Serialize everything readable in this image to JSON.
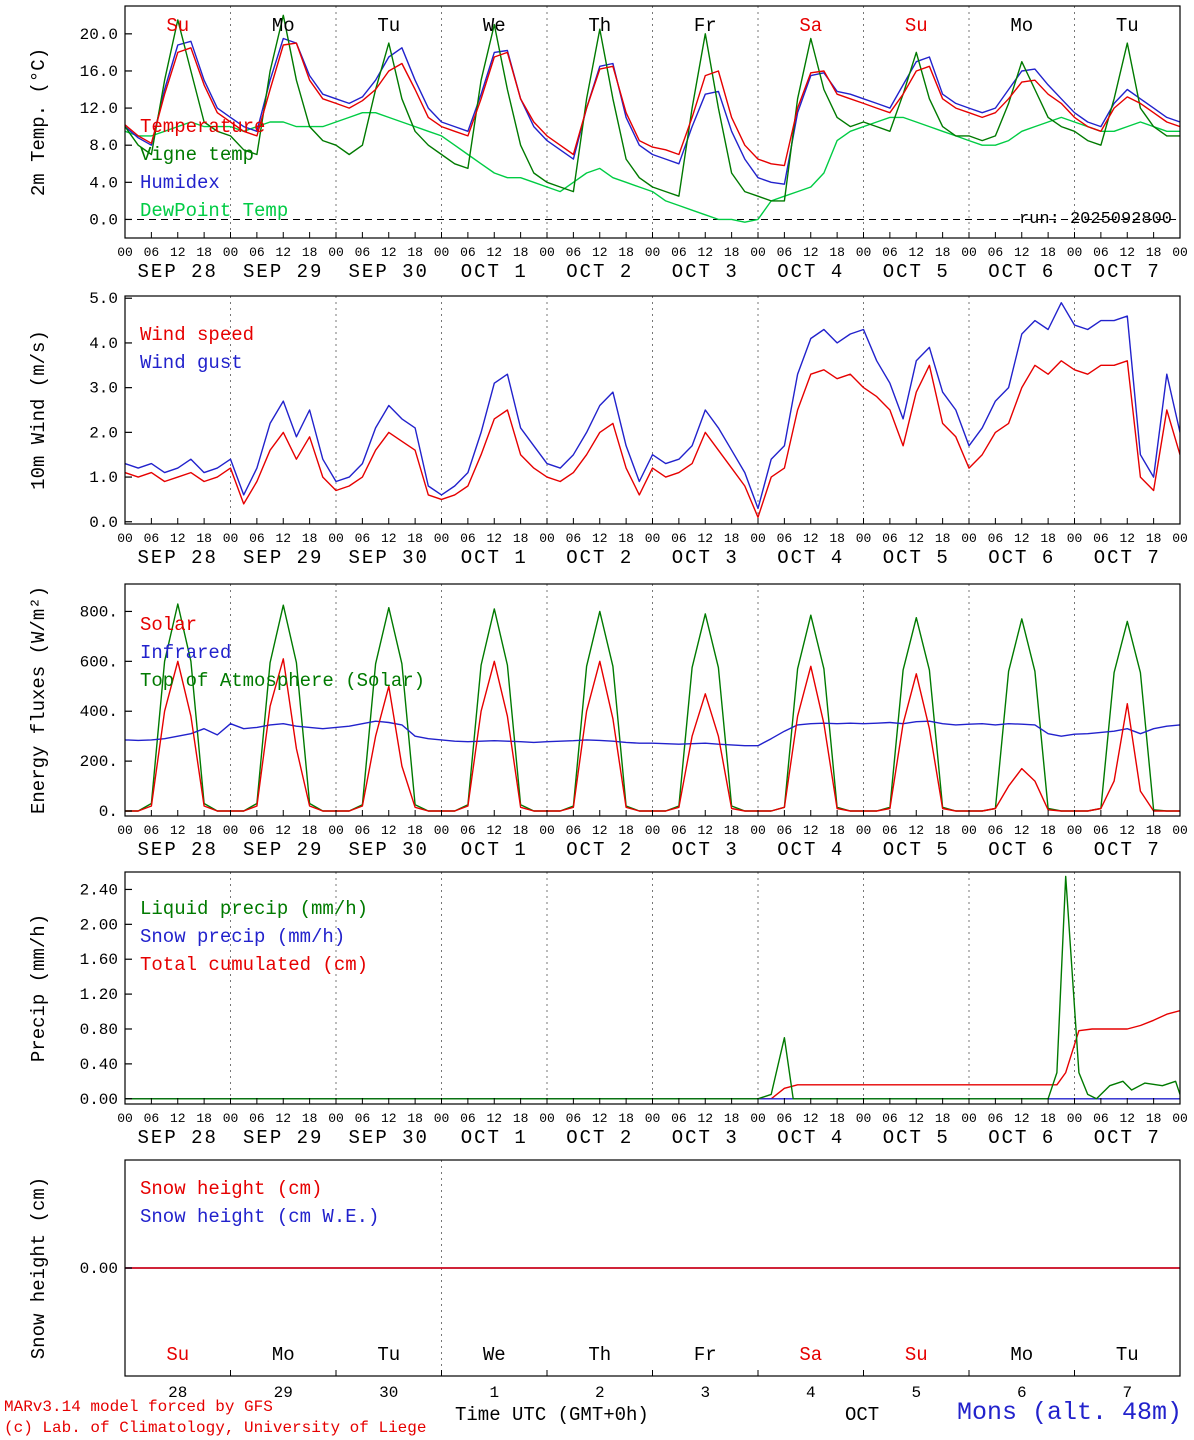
{
  "header": {
    "run_label": "run: 2025092800"
  },
  "footer": {
    "credit1": "MARv3.14 model forced by GFS",
    "credit2": "(c) Lab. of Climatology, University of Liege",
    "xaxis_title": "Time UTC (GMT+0h)",
    "month_label": "OCT",
    "station": "Mons (alt. 48m)"
  },
  "colors": {
    "red": "#e60000",
    "blue": "#2222cc",
    "dark_green": "#007a00",
    "light_green": "#00cc44",
    "grid": "#777777",
    "axis": "#000000"
  },
  "time": {
    "start": 0,
    "end": 240,
    "step": 3,
    "tick_step": 6,
    "tick_cycle": [
      "00",
      "06",
      "12",
      "18"
    ],
    "days": [
      {
        "name": "Su",
        "date": "SEP 28",
        "num": "28",
        "weekend": true
      },
      {
        "name": "Mo",
        "date": "SEP 29",
        "num": "29",
        "weekend": false
      },
      {
        "name": "Tu",
        "date": "SEP 30",
        "num": "30",
        "weekend": false
      },
      {
        "name": "We",
        "date": "OCT 1",
        "num": "1",
        "weekend": false
      },
      {
        "name": "Th",
        "date": "OCT 2",
        "num": "2",
        "weekend": false
      },
      {
        "name": "Fr",
        "date": "OCT 3",
        "num": "3",
        "weekend": false
      },
      {
        "name": "Sa",
        "date": "OCT 4",
        "num": "4",
        "weekend": true
      },
      {
        "name": "Su",
        "date": "OCT 5",
        "num": "5",
        "weekend": true
      },
      {
        "name": "Mo",
        "date": "OCT 6",
        "num": "6",
        "weekend": false
      },
      {
        "name": "Tu",
        "date": "OCT 7",
        "num": "7",
        "weekend": false
      }
    ]
  },
  "chart_data": [
    {
      "type": "line",
      "ylabel": "2m Temp. (°C)",
      "ylim": [
        -2,
        23
      ],
      "yticks": [
        0,
        4,
        8,
        12,
        16,
        20
      ],
      "ytick_labels": [
        "0.0",
        "4.0",
        "8.0",
        "12.0",
        "16.0",
        "20.0"
      ],
      "hline_dashed": 0,
      "series": [
        {
          "name": "Temperature",
          "color": "#e60000",
          "values": [
            10.2,
            9.0,
            8.2,
            13.5,
            18.0,
            18.5,
            14.5,
            11.5,
            10.5,
            9.5,
            9.0,
            14.0,
            18.8,
            19.0,
            15.0,
            13.0,
            12.5,
            12.0,
            12.8,
            14.0,
            16.0,
            16.8,
            14.0,
            11.0,
            10.0,
            9.5,
            9.0,
            13.0,
            17.5,
            18.0,
            13.0,
            10.5,
            9.0,
            8.0,
            7.0,
            12.0,
            16.2,
            16.5,
            11.5,
            8.5,
            7.8,
            7.5,
            7.0,
            11.0,
            15.5,
            16.0,
            11.0,
            8.0,
            6.5,
            6.0,
            5.8,
            12.0,
            15.8,
            16.0,
            13.5,
            13.0,
            12.5,
            12.0,
            11.5,
            13.5,
            16.0,
            16.5,
            13.0,
            12.0,
            11.5,
            11.0,
            11.5,
            13.0,
            14.8,
            15.0,
            13.5,
            12.5,
            11.0,
            10.0,
            9.5,
            12.0,
            13.2,
            12.5,
            11.5,
            10.5,
            10.0
          ]
        },
        {
          "name": "Vigne temp",
          "color": "#007a00",
          "values": [
            10.0,
            8.0,
            7.0,
            15.0,
            21.5,
            16.0,
            10.5,
            9.5,
            9.0,
            7.5,
            7.0,
            16.0,
            22.0,
            15.0,
            10.0,
            8.5,
            8.0,
            7.0,
            8.0,
            14.0,
            19.0,
            13.0,
            9.5,
            8.0,
            7.0,
            6.0,
            5.5,
            15.0,
            21.0,
            14.0,
            8.0,
            5.0,
            4.0,
            3.5,
            3.0,
            13.0,
            20.5,
            13.0,
            6.5,
            4.5,
            3.5,
            3.0,
            2.5,
            12.0,
            20.0,
            12.0,
            5.0,
            3.0,
            2.5,
            2.0,
            2.0,
            13.0,
            19.5,
            14.0,
            11.0,
            10.0,
            10.5,
            10.0,
            9.5,
            13.5,
            18.0,
            13.0,
            10.0,
            9.0,
            9.0,
            8.5,
            9.0,
            12.5,
            17.0,
            14.0,
            11.0,
            10.0,
            9.5,
            8.5,
            8.0,
            13.0,
            19.0,
            12.0,
            10.0,
            9.0,
            9.0
          ]
        },
        {
          "name": "Humidex",
          "color": "#2222cc",
          "values": [
            10.0,
            8.8,
            8.0,
            14.0,
            18.8,
            19.2,
            15.0,
            12.0,
            11.0,
            10.0,
            9.5,
            15.0,
            19.5,
            19.0,
            15.5,
            13.5,
            13.0,
            12.5,
            13.2,
            15.0,
            17.5,
            18.5,
            15.0,
            12.0,
            10.5,
            10.0,
            9.5,
            13.5,
            18.0,
            18.2,
            13.0,
            10.0,
            8.5,
            7.5,
            6.5,
            12.0,
            16.5,
            16.8,
            11.0,
            8.0,
            7.0,
            6.5,
            6.0,
            10.0,
            13.5,
            13.8,
            9.5,
            6.5,
            4.5,
            4.0,
            3.8,
            11.5,
            15.5,
            15.8,
            13.8,
            13.5,
            13.0,
            12.5,
            12.0,
            14.5,
            17.0,
            17.5,
            13.5,
            12.5,
            12.0,
            11.5,
            12.0,
            14.0,
            16.0,
            16.2,
            14.5,
            13.0,
            11.5,
            10.5,
            10.0,
            12.5,
            14.0,
            13.0,
            12.0,
            11.0,
            10.5
          ]
        },
        {
          "name": "DewPoint Temp",
          "color": "#00cc44",
          "values": [
            9.5,
            9.0,
            9.0,
            9.5,
            10.0,
            10.5,
            10.0,
            10.0,
            10.0,
            9.5,
            10.0,
            10.5,
            10.5,
            10.0,
            10.0,
            10.0,
            10.5,
            11.0,
            11.5,
            11.5,
            11.0,
            10.5,
            10.0,
            9.5,
            9.0,
            8.0,
            7.0,
            6.0,
            5.0,
            4.5,
            4.5,
            4.0,
            3.5,
            3.0,
            4.0,
            5.0,
            5.5,
            4.5,
            4.0,
            3.5,
            3.0,
            2.0,
            1.5,
            1.0,
            0.5,
            0.0,
            0.0,
            -0.3,
            0.0,
            2.0,
            2.5,
            3.0,
            3.5,
            5.0,
            8.5,
            9.5,
            10.0,
            10.5,
            11.0,
            11.0,
            10.5,
            10.0,
            9.5,
            9.0,
            8.5,
            8.0,
            8.0,
            8.5,
            9.5,
            10.0,
            10.5,
            11.0,
            10.5,
            10.0,
            9.5,
            9.5,
            10.0,
            10.5,
            10.0,
            9.5,
            9.5
          ]
        }
      ]
    },
    {
      "type": "line",
      "ylabel": "10m Wind (m/s)",
      "ylim": [
        -0.05,
        5.05
      ],
      "yticks": [
        0,
        1,
        2,
        3,
        4,
        5
      ],
      "ytick_labels": [
        "0.0",
        "1.0",
        "2.0",
        "3.0",
        "4.0",
        "5.0"
      ],
      "series": [
        {
          "name": "Wind speed",
          "color": "#e60000",
          "values": [
            1.1,
            1.0,
            1.1,
            0.9,
            1.0,
            1.1,
            0.9,
            1.0,
            1.2,
            0.4,
            0.9,
            1.6,
            2.0,
            1.4,
            1.9,
            1.0,
            0.7,
            0.8,
            1.0,
            1.6,
            2.0,
            1.8,
            1.6,
            0.6,
            0.5,
            0.6,
            0.8,
            1.5,
            2.3,
            2.5,
            1.5,
            1.2,
            1.0,
            0.9,
            1.1,
            1.5,
            2.0,
            2.2,
            1.2,
            0.6,
            1.2,
            1.0,
            1.1,
            1.3,
            2.0,
            1.6,
            1.2,
            0.8,
            0.1,
            1.0,
            1.2,
            2.5,
            3.3,
            3.4,
            3.2,
            3.3,
            3.0,
            2.8,
            2.5,
            1.7,
            2.9,
            3.5,
            2.2,
            1.9,
            1.2,
            1.5,
            2.0,
            2.2,
            3.0,
            3.5,
            3.3,
            3.6,
            3.4,
            3.3,
            3.5,
            3.5,
            3.6,
            1.0,
            0.7,
            2.5,
            1.5
          ]
        },
        {
          "name": "Wind gust",
          "color": "#2222cc",
          "values": [
            1.3,
            1.2,
            1.3,
            1.1,
            1.2,
            1.4,
            1.1,
            1.2,
            1.4,
            0.6,
            1.2,
            2.2,
            2.7,
            1.9,
            2.5,
            1.4,
            0.9,
            1.0,
            1.3,
            2.1,
            2.6,
            2.3,
            2.1,
            0.8,
            0.6,
            0.8,
            1.1,
            2.0,
            3.1,
            3.3,
            2.1,
            1.7,
            1.3,
            1.2,
            1.5,
            2.0,
            2.6,
            2.9,
            1.7,
            0.9,
            1.5,
            1.3,
            1.4,
            1.7,
            2.5,
            2.1,
            1.6,
            1.1,
            0.3,
            1.4,
            1.7,
            3.3,
            4.1,
            4.3,
            4.0,
            4.2,
            4.3,
            3.6,
            3.1,
            2.3,
            3.6,
            3.9,
            2.9,
            2.5,
            1.7,
            2.1,
            2.7,
            3.0,
            4.2,
            4.5,
            4.3,
            4.9,
            4.4,
            4.3,
            4.5,
            4.5,
            4.6,
            1.5,
            1.0,
            3.3,
            2.0
          ]
        }
      ]
    },
    {
      "type": "line",
      "ylabel": "Energy fluxes (W/m²)",
      "ylim": [
        -20,
        910
      ],
      "yticks": [
        0,
        200,
        400,
        600,
        800
      ],
      "ytick_labels": [
        "0.",
        "200.",
        "400.",
        "600.",
        "800."
      ],
      "series": [
        {
          "name": "Solar",
          "color": "#e60000",
          "values": [
            0,
            0,
            20,
            400,
            600,
            380,
            20,
            0,
            0,
            0,
            20,
            420,
            610,
            250,
            20,
            0,
            0,
            0,
            20,
            300,
            500,
            180,
            15,
            0,
            0,
            0,
            20,
            400,
            600,
            380,
            15,
            0,
            0,
            0,
            15,
            400,
            600,
            370,
            15,
            0,
            0,
            0,
            15,
            300,
            470,
            300,
            10,
            0,
            0,
            0,
            15,
            380,
            580,
            350,
            10,
            0,
            0,
            0,
            10,
            350,
            550,
            330,
            10,
            0,
            0,
            0,
            10,
            100,
            170,
            120,
            5,
            0,
            0,
            0,
            10,
            120,
            430,
            80,
            0,
            0,
            0
          ]
        },
        {
          "name": "Infrared",
          "color": "#2222cc",
          "values": [
            285,
            283,
            285,
            290,
            300,
            310,
            330,
            305,
            350,
            330,
            335,
            345,
            350,
            340,
            335,
            330,
            335,
            340,
            350,
            360,
            355,
            345,
            300,
            290,
            285,
            280,
            278,
            280,
            282,
            280,
            278,
            275,
            278,
            280,
            282,
            285,
            283,
            280,
            275,
            272,
            272,
            270,
            268,
            270,
            272,
            268,
            265,
            262,
            262,
            290,
            320,
            345,
            350,
            352,
            350,
            352,
            350,
            352,
            355,
            350,
            358,
            360,
            350,
            345,
            348,
            350,
            345,
            350,
            348,
            345,
            310,
            300,
            308,
            310,
            315,
            320,
            330,
            310,
            330,
            340,
            345
          ]
        },
        {
          "name": "Top of Atmosphere (Solar)",
          "color": "#007a00",
          "values": [
            0,
            0,
            30,
            600,
            830,
            600,
            30,
            0,
            0,
            0,
            30,
            595,
            825,
            595,
            30,
            0,
            0,
            0,
            25,
            590,
            815,
            590,
            25,
            0,
            0,
            0,
            25,
            585,
            810,
            585,
            25,
            0,
            0,
            0,
            20,
            580,
            800,
            580,
            20,
            0,
            0,
            0,
            20,
            575,
            790,
            575,
            20,
            0,
            0,
            0,
            15,
            570,
            785,
            570,
            15,
            0,
            0,
            0,
            15,
            565,
            775,
            565,
            15,
            0,
            0,
            0,
            10,
            560,
            770,
            560,
            10,
            0,
            0,
            0,
            10,
            555,
            760,
            555,
            5,
            0,
            0
          ]
        }
      ]
    },
    {
      "type": "line",
      "ylabel": "Precip (mm/h)",
      "ylim": [
        -0.06,
        2.6
      ],
      "yticks": [
        0,
        0.4,
        0.8,
        1.2,
        1.6,
        2.0,
        2.4
      ],
      "ytick_labels": [
        "0.00",
        "0.40",
        "0.80",
        "1.20",
        "1.60",
        "2.00",
        "2.40"
      ],
      "series": [
        {
          "name": "Liquid precip (mm/h)",
          "color": "#007a00",
          "points": [
            [
              0,
              0
            ],
            [
              144,
              0
            ],
            [
              147,
              0.05
            ],
            [
              150,
              0.7
            ],
            [
              152,
              0
            ],
            [
              210,
              0
            ],
            [
              212,
              0.3
            ],
            [
              214,
              2.55
            ],
            [
              217,
              0.3
            ],
            [
              219,
              0.05
            ],
            [
              221,
              0
            ],
            [
              224,
              0.15
            ],
            [
              227,
              0.2
            ],
            [
              229,
              0.1
            ],
            [
              232,
              0.18
            ],
            [
              236,
              0.15
            ],
            [
              239,
              0.2
            ],
            [
              240,
              0.05
            ]
          ]
        },
        {
          "name": "Snow precip (mm/h)",
          "color": "#2222cc",
          "points": [
            [
              0,
              0
            ],
            [
              240,
              0
            ]
          ]
        },
        {
          "name": "Total cumulated (cm)",
          "color": "#e60000",
          "points": [
            [
              0,
              0
            ],
            [
              147,
              0
            ],
            [
              150,
              0.12
            ],
            [
              153,
              0.16
            ],
            [
              212,
              0.16
            ],
            [
              214,
              0.3
            ],
            [
              217,
              0.78
            ],
            [
              220,
              0.8
            ],
            [
              228,
              0.8
            ],
            [
              231,
              0.84
            ],
            [
              234,
              0.9
            ],
            [
              237,
              0.97
            ],
            [
              240,
              1.01
            ]
          ]
        }
      ]
    },
    {
      "type": "line",
      "ylabel": "Snow height (cm)",
      "ylim": [
        -1,
        1
      ],
      "yticks": [
        0
      ],
      "ytick_labels": [
        "0.00"
      ],
      "series": [
        {
          "name": "Snow height (cm)",
          "color": "#e60000",
          "points": [
            [
              0,
              0
            ],
            [
              240,
              0
            ]
          ]
        },
        {
          "name": "Snow height (cm W.E.)",
          "color": "#2222cc",
          "points": [
            [
              0,
              0
            ],
            [
              240,
              0
            ]
          ]
        }
      ]
    }
  ]
}
